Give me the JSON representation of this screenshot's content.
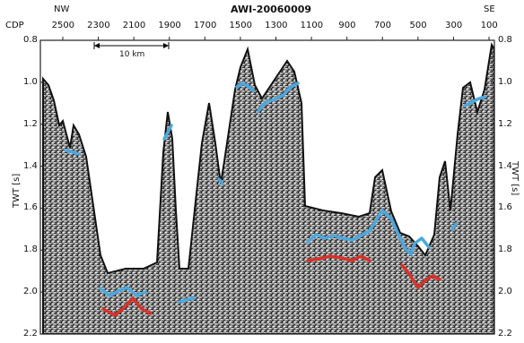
{
  "profile_title": "AWI-20060009",
  "direction": {
    "left": "NW",
    "right": "SE"
  },
  "x_axis": {
    "label": "CDP",
    "ticks": [
      "2500",
      "2300",
      "2100",
      "1900",
      "1700",
      "1500",
      "1300",
      "1100",
      "900",
      "700",
      "500",
      "300",
      "100"
    ]
  },
  "y_axis": {
    "label": "TWT [s]",
    "label_right": "TWT [s]",
    "ticks": [
      "0.8",
      "1.0",
      "1.2",
      "1.4",
      "1.6",
      "1.8",
      "2.0",
      "2.2"
    ],
    "range": [
      0.8,
      2.2
    ]
  },
  "scale_bar": {
    "label": "10 km"
  },
  "horizons": [
    {
      "color": "#4aa8e0"
    },
    {
      "color": "#d8322a"
    }
  ],
  "colors": {
    "seismic": "#5a5a5a",
    "axis": "#222222"
  }
}
